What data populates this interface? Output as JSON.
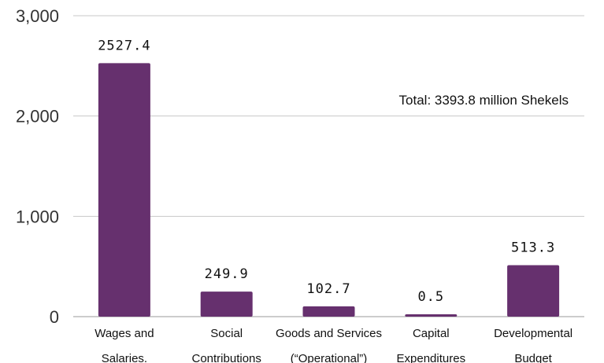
{
  "chart_data": {
    "type": "bar",
    "categories": [
      [
        "Wages and",
        "Salaries."
      ],
      [
        "Social",
        "Contributions"
      ],
      [
        "Goods and Services",
        "(“Operational”)"
      ],
      [
        "Capital",
        "Expenditures"
      ],
      [
        "Developmental",
        "Budget"
      ]
    ],
    "values": [
      2527.4,
      249.9,
      102.7,
      0.5,
      513.3
    ],
    "value_labels": [
      "2527.4",
      "249.9",
      "102.7",
      "0.5",
      "513.3"
    ],
    "y_ticks": [
      {
        "value": 0,
        "label": "0"
      },
      {
        "value": 1000,
        "label": "1,000"
      },
      {
        "value": 2000,
        "label": "2,000"
      },
      {
        "value": 3000,
        "label": "3,000"
      }
    ],
    "ylim": [
      0,
      3000
    ],
    "grid": true,
    "bar_color": "#66306e",
    "grid_color": "#c8c8c8",
    "annotation": "Total: 3393.8 million Shekels"
  }
}
